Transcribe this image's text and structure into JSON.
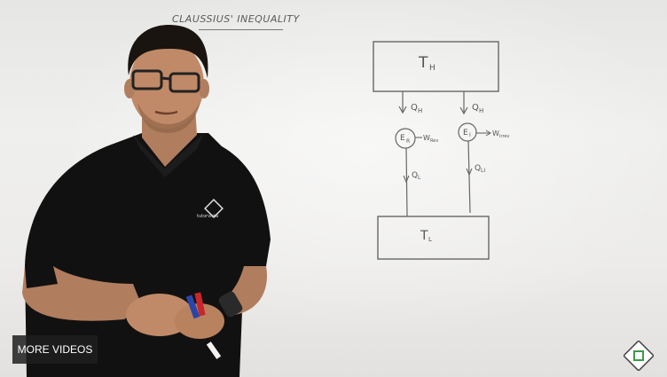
{
  "video": {
    "board_title": "CLAUSSIUS' INEQUALITY",
    "diagram": {
      "hot_reservoir": "TH",
      "hot_sub": "H",
      "cold_reservoir": "TL",
      "cold_sub": "L",
      "engine_reversible": "ER",
      "engine_irreversible": "EI",
      "q_h_left": "QH",
      "q_h_right": "QH",
      "w_rev": "WRev",
      "w_irrev": "WIrrev",
      "q_l_left": "QL",
      "q_l_right": "QLI"
    },
    "shirt_brand": "tutorvista"
  },
  "controls": {
    "more_videos_label": "MORE VIDEOS"
  },
  "colors": {
    "board": "#ececea",
    "ink": "#555555",
    "shirt": "#111111",
    "button_bg": "#1e1e1e"
  }
}
